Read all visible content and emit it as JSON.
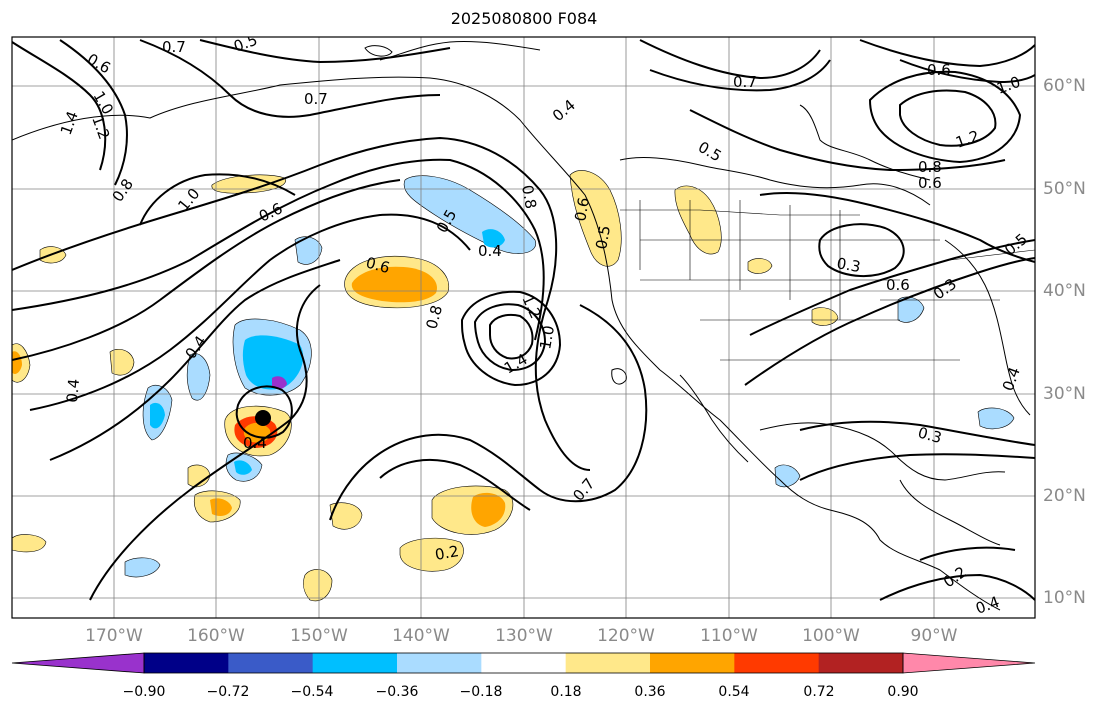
{
  "title": "2025080800 F084",
  "longitude_labels": [
    "170°W",
    "160°W",
    "150°W",
    "140°W",
    "130°W",
    "120°W",
    "110°W",
    "100°W",
    "90°W"
  ],
  "latitude_labels": [
    "60°N",
    "50°N",
    "40°N",
    "30°N",
    "20°N",
    "10°N"
  ],
  "colorbar": {
    "ticks": [
      "−0.90",
      "−0.72",
      "−0.54",
      "−0.36",
      "−0.18",
      "0.18",
      "0.36",
      "0.54",
      "0.72",
      "0.90"
    ],
    "colors": [
      "#9932cc",
      "#000088",
      "#3a5bc8",
      "#00bfff",
      "#aadcff",
      "#ffffff",
      "#ffe88a",
      "#ffa500",
      "#ff3a00",
      "#b22222",
      "#ff88aa"
    ]
  },
  "contour_labels": [
    "0.6",
    "0.7",
    "0.5",
    "1.4",
    "1.2",
    "1.0",
    "0.8",
    "1.0",
    "0.6",
    "0.7",
    "0.4",
    "0.5",
    "0.8",
    "0.7",
    "0.5",
    "0.6",
    "1.0",
    "1.2",
    "0.8",
    "0.6",
    "0.6",
    "0.5",
    "0.4",
    "0.6",
    "0.8",
    "1.2",
    "1.4",
    "1.0",
    "0.4",
    "0.4",
    "0.4",
    "0.3",
    "0.6",
    "0.3",
    "0.3",
    "0.7",
    "0.2",
    "0.2",
    "0.4",
    "0.4",
    "0.5"
  ],
  "colors": {
    "contour": "#000000",
    "gridline": "#808080",
    "axis_label": "#8a8a8a"
  }
}
